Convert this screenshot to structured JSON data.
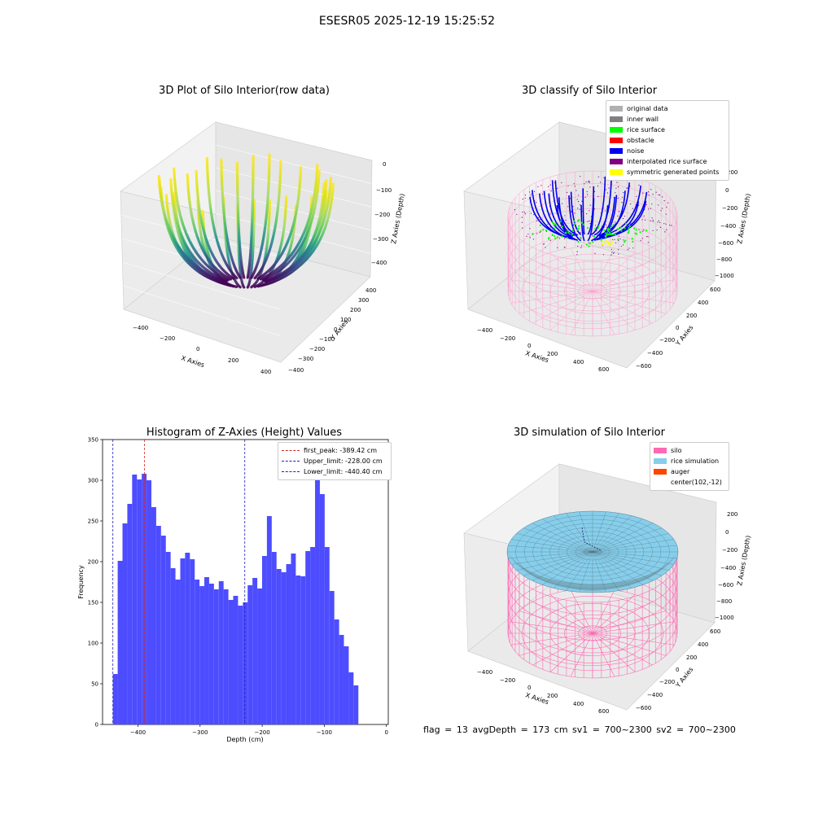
{
  "suptitle": "ESESR05 2025-12-19 15:25:52",
  "status_line": "flag = 13   avgDepth = 173 cm   sv1 = 700~2300   sv2 = 700~2300",
  "colors": {
    "bar": "#4d4dff",
    "peak_line": "#d62728",
    "limit_line": "#1f1fbf",
    "silo": "#ff69b4",
    "rice": "#87ceeb",
    "auger": "#ff4500"
  },
  "panels": {
    "raw": {
      "title": "3D Plot of Silo Interior(row data)",
      "xlabel": "X Axies",
      "ylabel": "Y Axies",
      "zlabel": "Z Axies (Depth)",
      "xticks": [
        "−400",
        "−200",
        "0",
        "200",
        "400"
      ],
      "yticks": [
        "400",
        "300",
        "200",
        "100",
        "0",
        "−100",
        "−200",
        "−300",
        "−400"
      ],
      "zticks": [
        "0",
        "−100",
        "−200",
        "−300",
        "−400"
      ]
    },
    "classify": {
      "title": "3D classify of Silo Interior",
      "xlabel": "X Axies",
      "ylabel": "Y Axies",
      "zlabel": "Z Axies (Depth)",
      "xticks": [
        "−400",
        "−200",
        "0",
        "200",
        "400",
        "600"
      ],
      "yticks": [
        "600",
        "400",
        "200",
        "0",
        "−200",
        "−400",
        "−600"
      ],
      "zticks": [
        "200",
        "0",
        "−200",
        "−400",
        "−600",
        "−800",
        "−1000"
      ],
      "legend": [
        {
          "label": "original data",
          "color": "#b0b0b0"
        },
        {
          "label": "inner wall",
          "color": "#808080"
        },
        {
          "label": "rice surface",
          "color": "#00ff00"
        },
        {
          "label": "obstacle",
          "color": "#ff0000"
        },
        {
          "label": "noise",
          "color": "#0000ee"
        },
        {
          "label": "interpolated rice surface",
          "color": "#800080"
        },
        {
          "label": "symmetric generated points",
          "color": "#ffff00"
        }
      ]
    },
    "simulation": {
      "title": "3D simulation of Silo Interior",
      "xlabel": "X Axies",
      "ylabel": "Y Axies",
      "zlabel": "Z Axies (Depth)",
      "xticks": [
        "−400",
        "−200",
        "0",
        "200",
        "400",
        "600"
      ],
      "yticks": [
        "600",
        "400",
        "200",
        "0",
        "−200",
        "−400",
        "−600"
      ],
      "zticks": [
        "200",
        "0",
        "−200",
        "−400",
        "−600",
        "−800",
        "−1000"
      ],
      "legend": [
        {
          "label": "silo",
          "color": "#ff69b4"
        },
        {
          "label": "rice simulation",
          "color": "#87ceeb"
        },
        {
          "label": "auger",
          "color": "#ff4500"
        },
        {
          "label": "center(102,-12)",
          "color": ""
        }
      ]
    }
  },
  "chart_data": {
    "type": "bar",
    "title": "Histogram of Z-Axies (Height) Values",
    "xlabel": "Depth (cm)",
    "ylabel": "Frequency",
    "xlim": [
      -457,
      3
    ],
    "ylim": [
      0,
      350
    ],
    "xticks": [
      -400,
      -300,
      -200,
      -100,
      0
    ],
    "yticks": [
      0,
      50,
      100,
      150,
      200,
      250,
      300,
      350
    ],
    "bin_start": -440.4,
    "bin_width": 7.75,
    "values": [
      62,
      201,
      247,
      271,
      307,
      301,
      308,
      300,
      267,
      244,
      232,
      212,
      192,
      178,
      204,
      211,
      203,
      178,
      170,
      181,
      173,
      166,
      176,
      166,
      153,
      158,
      146,
      150,
      171,
      180,
      167,
      207,
      256,
      212,
      191,
      187,
      197,
      210,
      183,
      182,
      213,
      218,
      342,
      283,
      218,
      164,
      129,
      110,
      96,
      64,
      48
    ],
    "vlines": [
      {
        "label": "first_peak: -389.42 cm",
        "x": -389.42,
        "color": "#d62728"
      },
      {
        "label": "Upper_limit: -228.00 cm",
        "x": -228.0,
        "color": "#1f1fbf"
      },
      {
        "label": "Lower_limit: -440.40 cm",
        "x": -440.4,
        "color": "#1f1fbf"
      }
    ]
  }
}
